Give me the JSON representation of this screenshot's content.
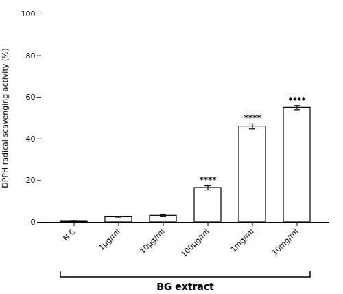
{
  "chart_data": {
    "type": "bar",
    "categories": [
      "N.C",
      "1μg/ml",
      "10μg/ml",
      "100μg/ml",
      "1mg/ml",
      "10mg/ml"
    ],
    "values": [
      0.3,
      2.5,
      3.2,
      16.5,
      46.0,
      55.0
    ],
    "errors": [
      0.15,
      0.4,
      0.5,
      1.0,
      1.2,
      1.0
    ],
    "color": "#ffffff",
    "ylabel": "DPPH radical scavenging activity (%)",
    "xlabel": "BG extract",
    "ylim": [
      0,
      100
    ],
    "yticks": [
      0,
      20,
      40,
      60,
      80,
      100
    ],
    "grid": false,
    "annotations": [
      {
        "category": "100μg/ml",
        "text": "****"
      },
      {
        "category": "1mg/ml",
        "text": "****"
      },
      {
        "category": "10mg/ml",
        "text": "****"
      }
    ]
  }
}
